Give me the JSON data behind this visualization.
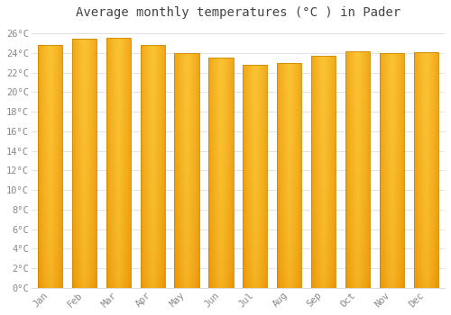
{
  "title": "Average monthly temperatures (°C ) in Pader",
  "months": [
    "Jan",
    "Feb",
    "Mar",
    "Apr",
    "May",
    "Jun",
    "Jul",
    "Aug",
    "Sep",
    "Oct",
    "Nov",
    "Dec"
  ],
  "values": [
    24.8,
    25.5,
    25.6,
    24.8,
    24.0,
    23.5,
    22.8,
    23.0,
    23.7,
    24.2,
    24.0,
    24.1
  ],
  "bar_color_center": "#FFD040",
  "bar_color_edge": "#E89000",
  "bar_outline_color": "#CC8800",
  "background_color": "#FFFFFF",
  "grid_color": "#DDDDDD",
  "ylim": [
    0,
    27
  ],
  "ytick_step": 2,
  "title_fontsize": 10,
  "tick_fontsize": 7.5,
  "title_color": "#444444",
  "tick_color": "#888888",
  "font_family": "monospace"
}
